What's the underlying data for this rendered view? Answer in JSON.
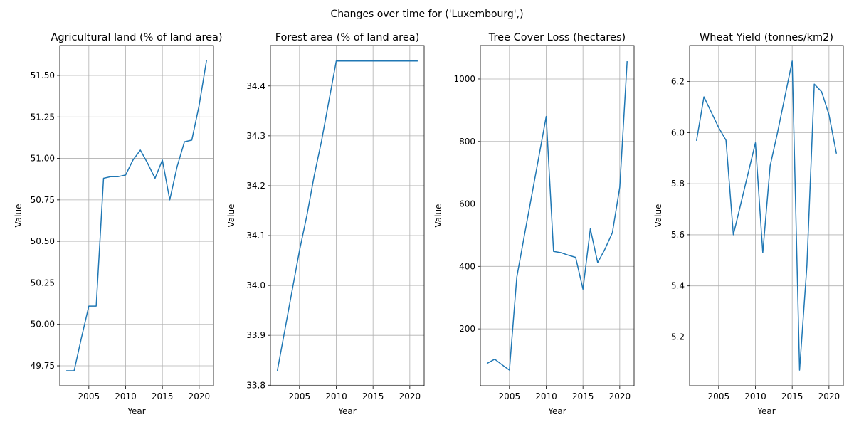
{
  "figure": {
    "suptitle": "Changes over time for ('Luxembourg',)",
    "line_color": "#1f77b4"
  },
  "chart_data": [
    {
      "type": "line",
      "title": "Agricultural land (% of land area)",
      "xlabel": "Year",
      "ylabel": "Value",
      "grid": true,
      "xlim": [
        2001.05,
        2021.95
      ],
      "ylim": [
        49.63,
        51.68
      ],
      "xticks": [
        2005,
        2010,
        2015,
        2020
      ],
      "yticks": [
        49.75,
        50.0,
        50.25,
        50.5,
        50.75,
        51.0,
        51.25,
        51.5
      ],
      "ytick_labels": [
        "49.75",
        "50.00",
        "50.25",
        "50.50",
        "50.75",
        "51.00",
        "51.25",
        "51.50"
      ],
      "series": [
        {
          "x": [
            2002,
            2003,
            2004,
            2005,
            2006,
            2007,
            2008,
            2009,
            2010,
            2011,
            2012,
            2013,
            2014,
            2015,
            2016,
            2017,
            2018,
            2019,
            2020,
            2021
          ],
          "y": [
            49.72,
            49.72,
            49.92,
            50.11,
            50.11,
            50.88,
            50.89,
            50.89,
            50.9,
            50.99,
            51.05,
            50.97,
            50.88,
            50.99,
            50.75,
            50.95,
            51.1,
            51.11,
            51.32,
            51.59
          ]
        }
      ]
    },
    {
      "type": "line",
      "title": "Forest area (% of land area)",
      "xlabel": "Year",
      "ylabel": "Value",
      "grid": true,
      "xlim": [
        2001.05,
        2021.95
      ],
      "ylim": [
        33.799,
        34.481
      ],
      "xticks": [
        2005,
        2010,
        2015,
        2020
      ],
      "yticks": [
        33.8,
        33.9,
        34.0,
        34.1,
        34.2,
        34.3,
        34.4
      ],
      "ytick_labels": [
        "33.8",
        "33.9",
        "34.0",
        "34.1",
        "34.2",
        "34.3",
        "34.4"
      ],
      "series": [
        {
          "x": [
            2002,
            2003,
            2004,
            2005,
            2006,
            2007,
            2008,
            2009,
            2010,
            2011,
            2012,
            2013,
            2014,
            2015,
            2016,
            2017,
            2018,
            2019,
            2020,
            2021
          ],
          "y": [
            33.83,
            33.91,
            33.99,
            34.07,
            34.14,
            34.22,
            34.29,
            34.37,
            34.45,
            34.45,
            34.45,
            34.45,
            34.45,
            34.45,
            34.45,
            34.45,
            34.45,
            34.45,
            34.45,
            34.45
          ]
        }
      ]
    },
    {
      "type": "line",
      "title": "Tree Cover Loss (hectares)",
      "xlabel": "Year",
      "ylabel": "Value",
      "grid": true,
      "xlim": [
        2001.05,
        2021.95
      ],
      "ylim": [
        18,
        1107
      ],
      "xticks": [
        2005,
        2010,
        2015,
        2020
      ],
      "yticks": [
        200,
        400,
        600,
        800,
        1000
      ],
      "ytick_labels": [
        "200",
        "400",
        "600",
        "800",
        "1000"
      ],
      "series": [
        {
          "x": [
            2002,
            2003,
            2004,
            2005,
            2006,
            2007,
            2008,
            2009,
            2010,
            2011,
            2012,
            2013,
            2014,
            2015,
            2016,
            2017,
            2018,
            2019,
            2020,
            2021
          ],
          "y": [
            90,
            103,
            85,
            68,
            365,
            495,
            623,
            751,
            880,
            448,
            444,
            436,
            429,
            327,
            520,
            412,
            456,
            508,
            653,
            1055
          ]
        }
      ]
    },
    {
      "type": "line",
      "title": "Wheat Yield (tonnes/km2)",
      "xlabel": "Year",
      "ylabel": "Value",
      "grid": true,
      "xlim": [
        2001.05,
        2021.95
      ],
      "ylim": [
        5.009,
        6.341
      ],
      "xticks": [
        2005,
        2010,
        2015,
        2020
      ],
      "yticks": [
        5.2,
        5.4,
        5.6,
        5.8,
        6.0,
        6.2
      ],
      "ytick_labels": [
        "5.2",
        "5.4",
        "5.6",
        "5.8",
        "6.0",
        "6.2"
      ],
      "series": [
        {
          "x": [
            2002,
            2003,
            2004,
            2005,
            2006,
            2007,
            2008,
            2009,
            2010,
            2011,
            2012,
            2013,
            2014,
            2015,
            2016,
            2017,
            2018,
            2019,
            2020,
            2021
          ],
          "y": [
            5.97,
            6.14,
            6.08,
            6.02,
            5.97,
            5.6,
            5.72,
            5.84,
            5.96,
            5.53,
            5.87,
            6.0,
            6.14,
            6.28,
            5.07,
            5.48,
            6.19,
            6.16,
            6.07,
            5.92
          ]
        }
      ]
    }
  ]
}
